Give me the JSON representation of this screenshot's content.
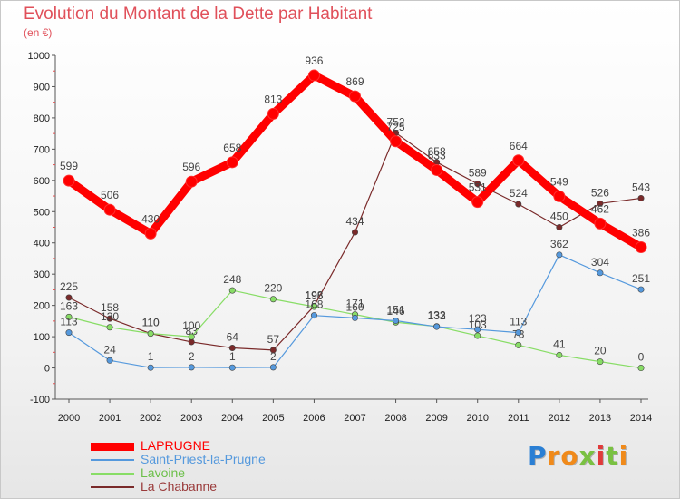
{
  "chart_data": {
    "type": "line",
    "title": "Evolution du Montant de la Dette par Habitant",
    "subtitle": "(en €)",
    "xlabel": "",
    "ylabel": "",
    "x": [
      "2000",
      "2001",
      "2002",
      "2003",
      "2004",
      "2005",
      "2006",
      "2007",
      "2008",
      "2009",
      "2010",
      "2011",
      "2012",
      "2013",
      "2014"
    ],
    "ylim": [
      -100,
      1000
    ],
    "yticks": [
      "-100",
      "0",
      "100",
      "200",
      "300",
      "400",
      "500",
      "600",
      "700",
      "800",
      "900",
      "1000"
    ],
    "grid": false,
    "legend_position": "bottom-left",
    "series": [
      {
        "name": "LAPRUGNE",
        "color": "#ff0000",
        "values": [
          599,
          506,
          430,
          596,
          658,
          813,
          936,
          869,
          725,
          633,
          531,
          664,
          549,
          462,
          386
        ],
        "labels": [
          "599",
          "506",
          "430",
          "596",
          "658",
          "813",
          "936",
          "869",
          "725",
          "633",
          "531",
          "664",
          "549",
          "462",
          "386"
        ]
      },
      {
        "name": "Saint-Priest-la-Prugne",
        "color": "#5599dd",
        "values": [
          113,
          24,
          1,
          2,
          1,
          2,
          168,
          160,
          151,
          132,
          123,
          113,
          362,
          304,
          251
        ],
        "labels": [
          "113",
          "24",
          "1",
          "2",
          "1",
          "2",
          "168",
          "160",
          "151",
          "132",
          "123",
          "113",
          "362",
          "304",
          "251"
        ]
      },
      {
        "name": "Lavoine",
        "color": "#88dd66",
        "values": [
          163,
          130,
          110,
          100,
          248,
          220,
          196,
          171,
          146,
          133,
          103,
          73,
          41,
          20,
          0
        ],
        "labels": [
          "163",
          "130",
          "110",
          "100",
          "248",
          "220",
          "196",
          "171",
          "146",
          "133",
          "103",
          "73",
          "41",
          "20",
          "0"
        ]
      },
      {
        "name": "La Chabanne",
        "color": "#7a2a2a",
        "values": [
          225,
          158,
          110,
          83,
          64,
          57,
          198,
          434,
          752,
          658,
          589,
          524,
          450,
          526,
          543
        ],
        "labels": [
          "225",
          "158",
          "110",
          "83",
          "64",
          "57",
          "198",
          "434",
          "752",
          "658",
          "589",
          "524",
          "450",
          "526",
          "543"
        ]
      }
    ]
  },
  "brand": {
    "letters": [
      "P",
      "r",
      "o",
      "x",
      "i",
      "t",
      "i"
    ],
    "colors": [
      "#2a7fd4",
      "#f08a1a",
      "#f08a1a",
      "#7ac142",
      "#e03a3a",
      "#7ac142",
      "#f08a1a"
    ]
  }
}
